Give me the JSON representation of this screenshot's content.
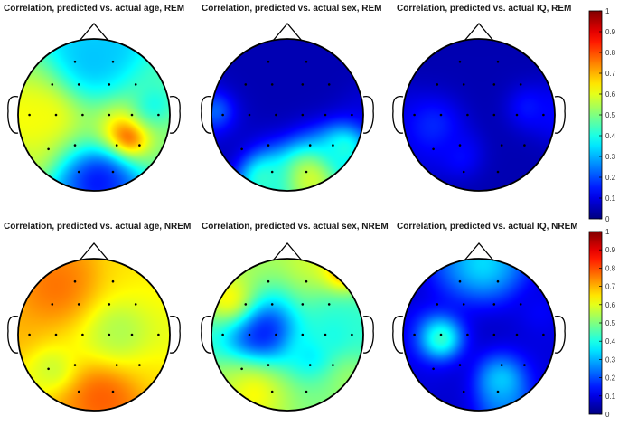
{
  "colormap": "jet",
  "colors": {
    "background": "#ffffff",
    "head_outline": "#000000",
    "electrode": "#000000"
  },
  "colorbars": [
    {
      "ticks": [
        "0",
        "0.1",
        "0.2",
        "0.3",
        "0.4",
        "0.5",
        "0.6",
        "0.7",
        "0.8",
        "0.9",
        "1"
      ]
    },
    {
      "ticks": [
        "0",
        "0.1",
        "0.2",
        "0.3",
        "0.4",
        "0.5",
        "0.6",
        "0.7",
        "0.8",
        "0.9",
        "1"
      ]
    }
  ],
  "chart_data": [
    {
      "type": "heatmap",
      "subtype": "scalp-topography",
      "title": "Correlation, predicted vs. actual age, REM",
      "clim": [
        0,
        1
      ],
      "electrodes": [
        {
          "x": -0.25,
          "y": 0.7,
          "value": 0.32
        },
        {
          "x": 0.25,
          "y": 0.7,
          "value": 0.3
        },
        {
          "x": -0.55,
          "y": 0.4,
          "value": 0.55
        },
        {
          "x": -0.2,
          "y": 0.4,
          "value": 0.4
        },
        {
          "x": 0.2,
          "y": 0.4,
          "value": 0.42
        },
        {
          "x": 0.55,
          "y": 0.4,
          "value": 0.45
        },
        {
          "x": -0.85,
          "y": 0.0,
          "value": 0.65
        },
        {
          "x": -0.5,
          "y": 0.0,
          "value": 0.6
        },
        {
          "x": -0.15,
          "y": 0.0,
          "value": 0.5
        },
        {
          "x": 0.2,
          "y": 0.0,
          "value": 0.6
        },
        {
          "x": 0.5,
          "y": 0.0,
          "value": 0.7
        },
        {
          "x": 0.85,
          "y": 0.0,
          "value": 0.55
        },
        {
          "x": -0.6,
          "y": -0.45,
          "value": 0.6
        },
        {
          "x": -0.25,
          "y": -0.4,
          "value": 0.5
        },
        {
          "x": 0.3,
          "y": -0.4,
          "value": 0.65
        },
        {
          "x": 0.6,
          "y": -0.4,
          "value": 0.5
        },
        {
          "x": -0.2,
          "y": -0.75,
          "value": 0.28
        },
        {
          "x": 0.25,
          "y": -0.75,
          "value": 0.2
        }
      ],
      "field": [
        {
          "x": 0.45,
          "y": -0.28,
          "value": 0.82,
          "sigma": 0.18
        },
        {
          "x": -0.6,
          "y": 0.05,
          "value": 0.62,
          "sigma": 0.3
        },
        {
          "x": 0.05,
          "y": -0.9,
          "value": 0.15,
          "sigma": 0.3
        },
        {
          "x": 0.0,
          "y": 0.75,
          "value": 0.32,
          "sigma": 0.35
        },
        {
          "x": 0.8,
          "y": 0.15,
          "value": 0.4,
          "sigma": 0.25
        }
      ],
      "default_value": 0.45
    },
    {
      "type": "heatmap",
      "subtype": "scalp-topography",
      "title": "Correlation, predicted vs. actual sex, REM",
      "clim": [
        0,
        1
      ],
      "electrodes": [
        {
          "x": -0.25,
          "y": 0.7,
          "value": 0.05
        },
        {
          "x": 0.25,
          "y": 0.7,
          "value": 0.05
        },
        {
          "x": -0.55,
          "y": 0.4,
          "value": 0.05
        },
        {
          "x": -0.2,
          "y": 0.4,
          "value": 0.05
        },
        {
          "x": 0.2,
          "y": 0.4,
          "value": 0.05
        },
        {
          "x": 0.55,
          "y": 0.4,
          "value": 0.05
        },
        {
          "x": -0.85,
          "y": 0.0,
          "value": 0.15
        },
        {
          "x": -0.5,
          "y": 0.0,
          "value": 0.05
        },
        {
          "x": -0.15,
          "y": 0.0,
          "value": 0.05
        },
        {
          "x": 0.2,
          "y": 0.0,
          "value": 0.05
        },
        {
          "x": 0.5,
          "y": 0.0,
          "value": 0.05
        },
        {
          "x": 0.85,
          "y": 0.0,
          "value": 0.1
        },
        {
          "x": -0.6,
          "y": -0.45,
          "value": 0.05
        },
        {
          "x": -0.25,
          "y": -0.4,
          "value": 0.1
        },
        {
          "x": 0.3,
          "y": -0.4,
          "value": 0.2
        },
        {
          "x": 0.6,
          "y": -0.4,
          "value": 0.35
        },
        {
          "x": -0.2,
          "y": -0.75,
          "value": 0.4
        },
        {
          "x": 0.25,
          "y": -0.75,
          "value": 0.5
        }
      ],
      "field": [
        {
          "x": 0.3,
          "y": -0.85,
          "value": 0.58,
          "sigma": 0.28
        },
        {
          "x": -0.3,
          "y": -0.85,
          "value": 0.42,
          "sigma": 0.22
        },
        {
          "x": 0.75,
          "y": -0.45,
          "value": 0.4,
          "sigma": 0.2
        },
        {
          "x": -0.95,
          "y": 0.05,
          "value": 0.22,
          "sigma": 0.15
        }
      ],
      "default_value": 0.05
    },
    {
      "type": "heatmap",
      "subtype": "scalp-topography",
      "title": "Correlation, predicted vs. actual IQ, REM",
      "clim": [
        0,
        1
      ],
      "electrodes": [
        {
          "x": -0.25,
          "y": 0.7,
          "value": 0.05
        },
        {
          "x": 0.25,
          "y": 0.7,
          "value": 0.05
        },
        {
          "x": -0.55,
          "y": 0.4,
          "value": 0.05
        },
        {
          "x": -0.2,
          "y": 0.4,
          "value": 0.05
        },
        {
          "x": 0.2,
          "y": 0.4,
          "value": 0.05
        },
        {
          "x": 0.55,
          "y": 0.4,
          "value": 0.05
        },
        {
          "x": -0.85,
          "y": 0.0,
          "value": 0.1
        },
        {
          "x": -0.5,
          "y": 0.0,
          "value": 0.1
        },
        {
          "x": -0.15,
          "y": 0.0,
          "value": 0.05
        },
        {
          "x": 0.2,
          "y": 0.0,
          "value": 0.05
        },
        {
          "x": 0.5,
          "y": 0.0,
          "value": 0.05
        },
        {
          "x": 0.85,
          "y": 0.0,
          "value": 0.15
        },
        {
          "x": -0.6,
          "y": -0.45,
          "value": 0.1
        },
        {
          "x": -0.25,
          "y": -0.4,
          "value": 0.1
        },
        {
          "x": 0.3,
          "y": -0.4,
          "value": 0.05
        },
        {
          "x": 0.6,
          "y": -0.4,
          "value": 0.05
        },
        {
          "x": -0.2,
          "y": -0.75,
          "value": 0.05
        },
        {
          "x": 0.25,
          "y": -0.75,
          "value": 0.05
        }
      ],
      "field": [
        {
          "x": -0.6,
          "y": -0.15,
          "value": 0.16,
          "sigma": 0.25
        },
        {
          "x": 0.65,
          "y": 0.1,
          "value": 0.14,
          "sigma": 0.2
        },
        {
          "x": -0.25,
          "y": -0.55,
          "value": 0.13,
          "sigma": 0.2
        }
      ],
      "default_value": 0.04
    },
    {
      "type": "heatmap",
      "subtype": "scalp-topography",
      "title": "Correlation, predicted vs. actual age, NREM",
      "clim": [
        0,
        1
      ],
      "electrodes": [
        {
          "x": -0.25,
          "y": 0.7,
          "value": 0.72
        },
        {
          "x": 0.25,
          "y": 0.7,
          "value": 0.65
        },
        {
          "x": -0.55,
          "y": 0.4,
          "value": 0.72
        },
        {
          "x": -0.2,
          "y": 0.4,
          "value": 0.65
        },
        {
          "x": 0.2,
          "y": 0.4,
          "value": 0.62
        },
        {
          "x": 0.55,
          "y": 0.4,
          "value": 0.62
        },
        {
          "x": -0.85,
          "y": 0.0,
          "value": 0.7
        },
        {
          "x": -0.5,
          "y": 0.0,
          "value": 0.65
        },
        {
          "x": -0.15,
          "y": 0.0,
          "value": 0.6
        },
        {
          "x": 0.2,
          "y": 0.0,
          "value": 0.55
        },
        {
          "x": 0.5,
          "y": 0.0,
          "value": 0.58
        },
        {
          "x": 0.85,
          "y": 0.0,
          "value": 0.6
        },
        {
          "x": -0.6,
          "y": -0.45,
          "value": 0.6
        },
        {
          "x": -0.25,
          "y": -0.4,
          "value": 0.62
        },
        {
          "x": 0.3,
          "y": -0.4,
          "value": 0.62
        },
        {
          "x": 0.6,
          "y": -0.4,
          "value": 0.65
        },
        {
          "x": -0.2,
          "y": -0.75,
          "value": 0.72
        },
        {
          "x": 0.25,
          "y": -0.75,
          "value": 0.75
        }
      ],
      "field": [
        {
          "x": -0.5,
          "y": 0.65,
          "value": 0.76,
          "sigma": 0.35
        },
        {
          "x": 0.1,
          "y": -0.85,
          "value": 0.78,
          "sigma": 0.3
        },
        {
          "x": 0.35,
          "y": 0.05,
          "value": 0.55,
          "sigma": 0.25
        },
        {
          "x": -0.55,
          "y": -0.45,
          "value": 0.58,
          "sigma": 0.18
        }
      ],
      "default_value": 0.66
    },
    {
      "type": "heatmap",
      "subtype": "scalp-topography",
      "title": "Correlation, predicted vs. actual sex, NREM",
      "clim": [
        0,
        1
      ],
      "electrodes": [
        {
          "x": -0.25,
          "y": 0.7,
          "value": 0.55
        },
        {
          "x": 0.25,
          "y": 0.7,
          "value": 0.6
        },
        {
          "x": -0.55,
          "y": 0.4,
          "value": 0.5
        },
        {
          "x": -0.2,
          "y": 0.4,
          "value": 0.3
        },
        {
          "x": 0.2,
          "y": 0.4,
          "value": 0.45
        },
        {
          "x": 0.55,
          "y": 0.4,
          "value": 0.4
        },
        {
          "x": -0.85,
          "y": 0.0,
          "value": 0.4
        },
        {
          "x": -0.5,
          "y": 0.0,
          "value": 0.15
        },
        {
          "x": -0.15,
          "y": 0.0,
          "value": 0.2
        },
        {
          "x": 0.2,
          "y": 0.0,
          "value": 0.4
        },
        {
          "x": 0.5,
          "y": 0.0,
          "value": 0.45
        },
        {
          "x": 0.85,
          "y": 0.0,
          "value": 0.4
        },
        {
          "x": -0.6,
          "y": -0.45,
          "value": 0.55
        },
        {
          "x": -0.25,
          "y": -0.4,
          "value": 0.45
        },
        {
          "x": 0.3,
          "y": -0.4,
          "value": 0.4
        },
        {
          "x": 0.6,
          "y": -0.4,
          "value": 0.55
        },
        {
          "x": -0.2,
          "y": -0.75,
          "value": 0.55
        },
        {
          "x": 0.25,
          "y": -0.75,
          "value": 0.5
        }
      ],
      "field": [
        {
          "x": -0.35,
          "y": 0.05,
          "value": 0.15,
          "sigma": 0.25
        },
        {
          "x": 0.75,
          "y": 0.85,
          "value": 0.72,
          "sigma": 0.2
        },
        {
          "x": -0.8,
          "y": 0.5,
          "value": 0.62,
          "sigma": 0.25
        },
        {
          "x": 0.3,
          "y": -0.25,
          "value": 0.36,
          "sigma": 0.2
        },
        {
          "x": -0.45,
          "y": -0.8,
          "value": 0.62,
          "sigma": 0.25
        },
        {
          "x": 0.6,
          "y": 0.0,
          "value": 0.4,
          "sigma": 0.2
        }
      ],
      "default_value": 0.52
    },
    {
      "type": "heatmap",
      "subtype": "scalp-topography",
      "title": "Correlation, predicted vs. actual IQ, NREM",
      "clim": [
        0,
        1
      ],
      "electrodes": [
        {
          "x": -0.25,
          "y": 0.7,
          "value": 0.2
        },
        {
          "x": 0.25,
          "y": 0.7,
          "value": 0.2
        },
        {
          "x": -0.55,
          "y": 0.4,
          "value": 0.08
        },
        {
          "x": -0.2,
          "y": 0.4,
          "value": 0.05
        },
        {
          "x": 0.2,
          "y": 0.4,
          "value": 0.05
        },
        {
          "x": 0.55,
          "y": 0.4,
          "value": 0.08
        },
        {
          "x": -0.85,
          "y": 0.0,
          "value": 0.1
        },
        {
          "x": -0.5,
          "y": 0.0,
          "value": 0.4
        },
        {
          "x": -0.15,
          "y": 0.0,
          "value": 0.08
        },
        {
          "x": 0.2,
          "y": 0.0,
          "value": 0.05
        },
        {
          "x": 0.5,
          "y": 0.0,
          "value": 0.08
        },
        {
          "x": 0.85,
          "y": 0.0,
          "value": 0.1
        },
        {
          "x": -0.6,
          "y": -0.45,
          "value": 0.1
        },
        {
          "x": -0.25,
          "y": -0.4,
          "value": 0.08
        },
        {
          "x": 0.3,
          "y": -0.4,
          "value": 0.2
        },
        {
          "x": 0.6,
          "y": -0.4,
          "value": 0.1
        },
        {
          "x": -0.2,
          "y": -0.75,
          "value": 0.08
        },
        {
          "x": 0.25,
          "y": -0.75,
          "value": 0.3
        }
      ],
      "field": [
        {
          "x": -0.5,
          "y": -0.05,
          "value": 0.42,
          "sigma": 0.17
        },
        {
          "x": 0.05,
          "y": 0.95,
          "value": 0.34,
          "sigma": 0.35
        },
        {
          "x": 0.3,
          "y": -0.6,
          "value": 0.32,
          "sigma": 0.2
        },
        {
          "x": 0.8,
          "y": 0.3,
          "value": 0.12,
          "sigma": 0.2
        }
      ],
      "default_value": 0.05
    }
  ]
}
